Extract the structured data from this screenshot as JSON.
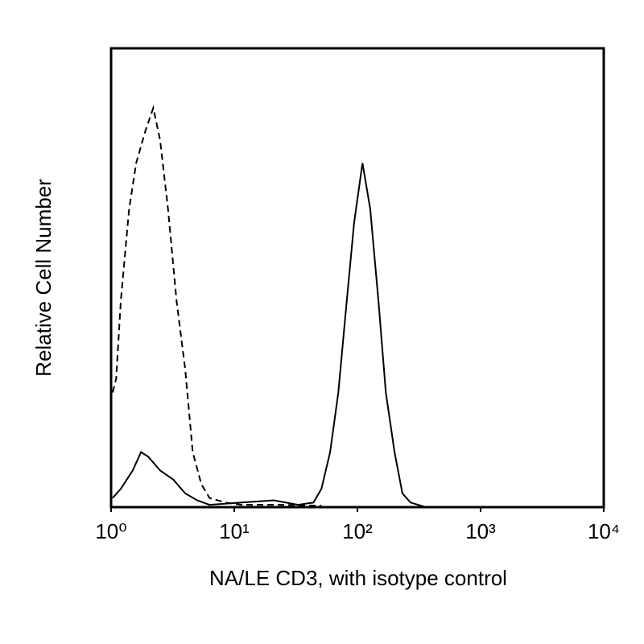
{
  "chart_data": {
    "type": "histogram-line",
    "xlabel": "NA/LE CD3, with isotype control",
    "ylabel": "Relative Cell Number",
    "xscale": "log",
    "xlim": [
      1,
      10000
    ],
    "ylim": [
      0,
      100
    ],
    "xticks": [
      {
        "value": 1,
        "label": "10⁰"
      },
      {
        "value": 10,
        "label": "10¹"
      },
      {
        "value": 100,
        "label": "10²"
      },
      {
        "value": 1000,
        "label": "10³"
      },
      {
        "value": 10000,
        "label": "10⁴"
      }
    ],
    "series": [
      {
        "style": "dashed",
        "color": "#000000",
        "x": [
          1.03,
          1.1,
          1.2,
          1.4,
          1.6,
          1.9,
          2.2,
          2.5,
          2.9,
          3.4,
          4.0,
          4.6,
          5.4,
          6.3,
          8.5,
          11.4,
          24,
          51
        ],
        "values": [
          25,
          28,
          45,
          65,
          75,
          82,
          87,
          80,
          65,
          45,
          30,
          12,
          5,
          2,
          1,
          0.5,
          0.5,
          0.3
        ]
      },
      {
        "style": "solid",
        "color": "#000000",
        "x": [
          1.03,
          1.2,
          1.5,
          1.75,
          2.0,
          2.5,
          3.2,
          4.0,
          5.0,
          6.3,
          11.4,
          21,
          33,
          44,
          51,
          60,
          70,
          80,
          94,
          110,
          127,
          148,
          170,
          200,
          232,
          270,
          360,
          10000
        ],
        "values": [
          2,
          4,
          8,
          12,
          11,
          8,
          6,
          3,
          1.5,
          0.5,
          1,
          1.5,
          0.5,
          1,
          4,
          12,
          25,
          42,
          62,
          75,
          65,
          45,
          25,
          12,
          3,
          1,
          0,
          0
        ]
      }
    ]
  }
}
